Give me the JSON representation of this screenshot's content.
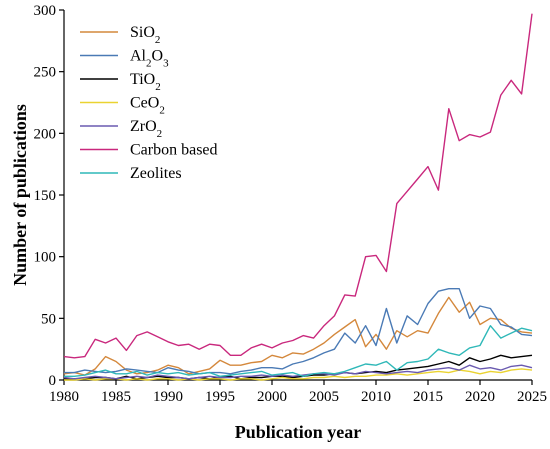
{
  "chart_data": {
    "type": "line",
    "xlabel": "Publication year",
    "ylabel": "Number of publications",
    "xlim": [
      1980,
      2025
    ],
    "ylim": [
      0,
      300
    ],
    "x_ticks": [
      1980,
      1985,
      1990,
      1995,
      2000,
      2005,
      2010,
      2015,
      2020,
      2025
    ],
    "y_ticks": [
      0,
      50,
      100,
      150,
      200,
      250,
      300
    ],
    "legend_position": "top-left",
    "grid": false,
    "x": [
      1980,
      1981,
      1982,
      1983,
      1984,
      1985,
      1986,
      1987,
      1988,
      1989,
      1990,
      1991,
      1992,
      1993,
      1994,
      1995,
      1996,
      1997,
      1998,
      1999,
      2000,
      2001,
      2002,
      2003,
      2004,
      2005,
      2006,
      2007,
      2008,
      2009,
      2010,
      2011,
      2012,
      2013,
      2014,
      2015,
      2016,
      2017,
      2018,
      2019,
      2020,
      2021,
      2022,
      2023,
      2024,
      2025
    ],
    "series": [
      {
        "name_base": "SiO",
        "name_sub": "2",
        "color": "#d4883c",
        "values": [
          5,
          6,
          4,
          9,
          19,
          15,
          8,
          5,
          6,
          8,
          12,
          10,
          5,
          7,
          9,
          16,
          12,
          12,
          14,
          15,
          20,
          18,
          22,
          21,
          25,
          30,
          37,
          43,
          49,
          27,
          37,
          25,
          40,
          35,
          40,
          38,
          54,
          67,
          55,
          63,
          45,
          50,
          49,
          42,
          39,
          38
        ]
      },
      {
        "name_base": "Al",
        "name_sub2": "2",
        "name_mid": "O",
        "name_sub": "3",
        "color": "#4a7ab5",
        "values": [
          6,
          6,
          8,
          7,
          6,
          7,
          9,
          8,
          7,
          6,
          10,
          8,
          7,
          5,
          6,
          6,
          5,
          7,
          8,
          10,
          10,
          9,
          13,
          15,
          18,
          22,
          25,
          38,
          30,
          44,
          28,
          58,
          30,
          52,
          45,
          62,
          72,
          74,
          74,
          50,
          60,
          58,
          45,
          43,
          37,
          36
        ]
      },
      {
        "name_base": "TiO",
        "name_sub": "2",
        "color": "#000000",
        "values": [
          1,
          1,
          1,
          2,
          2,
          1,
          3,
          1,
          2,
          3,
          2,
          2,
          1,
          2,
          1,
          2,
          3,
          1,
          2,
          2,
          3,
          3,
          2,
          3,
          4,
          4,
          5,
          6,
          5,
          6,
          7,
          6,
          8,
          9,
          10,
          11,
          13,
          15,
          12,
          18,
          15,
          17,
          20,
          18,
          19,
          20
        ]
      },
      {
        "name_base": "CeO",
        "name_sub": "2",
        "color": "#ead331",
        "values": [
          0,
          0,
          1,
          0,
          1,
          1,
          0,
          1,
          0,
          1,
          1,
          0,
          1,
          0,
          1,
          1,
          0,
          1,
          1,
          0,
          1,
          2,
          1,
          1,
          2,
          2,
          3,
          2,
          3,
          3,
          4,
          4,
          5,
          4,
          5,
          6,
          7,
          6,
          8,
          7,
          5,
          7,
          6,
          8,
          9,
          8
        ]
      },
      {
        "name_base": "ZrO",
        "name_sub": "2",
        "color": "#6a5ab0",
        "values": [
          2,
          1,
          2,
          3,
          2,
          1,
          2,
          3,
          2,
          4,
          3,
          2,
          1,
          2,
          3,
          2,
          2,
          3,
          3,
          4,
          3,
          4,
          3,
          4,
          5,
          5,
          4,
          6,
          5,
          7,
          6,
          5,
          6,
          7,
          6,
          8,
          9,
          10,
          8,
          12,
          9,
          10,
          8,
          11,
          12,
          10
        ]
      },
      {
        "name_base": "Carbon based",
        "name_sub": "",
        "color": "#c9287d",
        "values": [
          19,
          18,
          19,
          33,
          30,
          34,
          24,
          36,
          39,
          35,
          31,
          28,
          29,
          25,
          29,
          28,
          20,
          20,
          26,
          29,
          26,
          30,
          32,
          36,
          34,
          44,
          52,
          69,
          68,
          100,
          101,
          88,
          143,
          153,
          163,
          173,
          154,
          220,
          194,
          199,
          197,
          201,
          231,
          243,
          232,
          297
        ]
      },
      {
        "name_base": "Zeolites",
        "name_sub": "",
        "color": "#2fb8b8",
        "values": [
          3,
          3,
          4,
          6,
          8,
          5,
          5,
          7,
          4,
          6,
          5,
          6,
          4,
          5,
          6,
          3,
          4,
          5,
          6,
          7,
          4,
          5,
          6,
          3,
          5,
          6,
          5,
          7,
          10,
          13,
          12,
          15,
          8,
          14,
          15,
          17,
          25,
          22,
          20,
          26,
          28,
          44,
          34,
          38,
          42,
          40
        ]
      }
    ]
  }
}
